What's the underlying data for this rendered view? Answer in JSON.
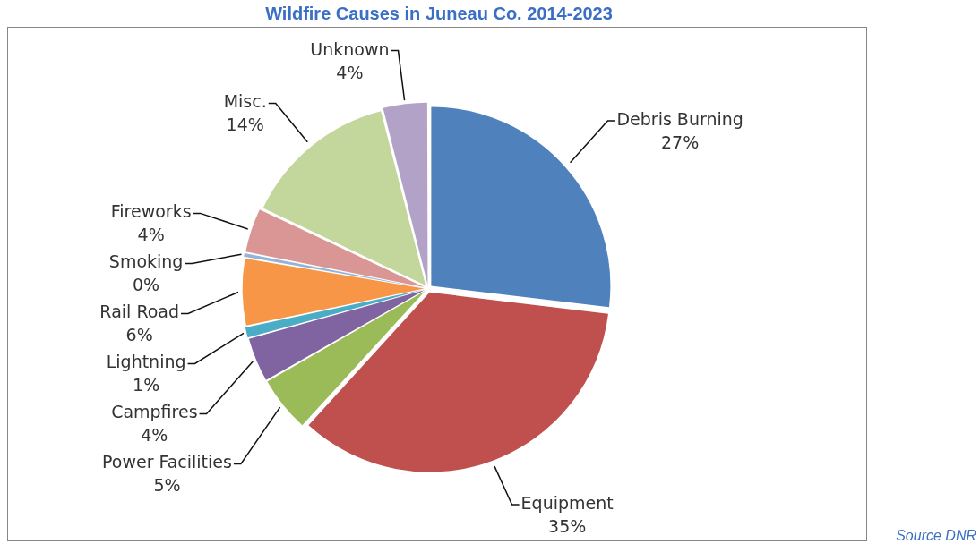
{
  "chart_data": {
    "type": "pie",
    "title": "Wildfire Causes in Juneau Co. 2014-2023",
    "categories": [
      "Debris Burning",
      "Equipment",
      "Power Facilities",
      "Campfires",
      "Lightning",
      "Rail Road",
      "Smoking",
      "Fireworks",
      "Misc.",
      "Unknown"
    ],
    "values": [
      27,
      35,
      5,
      4,
      1,
      6,
      0.4,
      4,
      14,
      4
    ],
    "value_labels": [
      "27%",
      "35%",
      "5%",
      "4%",
      "1%",
      "6%",
      "0%",
      "4%",
      "14%",
      "4%"
    ],
    "colors": [
      "#4f81bd",
      "#c0504d",
      "#9bbb59",
      "#8064a2",
      "#4bacc6",
      "#f79646",
      "#95b3d7",
      "#d99694",
      "#c3d69b",
      "#b3a2c7"
    ],
    "annotations": [
      "Source DNR"
    ],
    "legend": false
  }
}
